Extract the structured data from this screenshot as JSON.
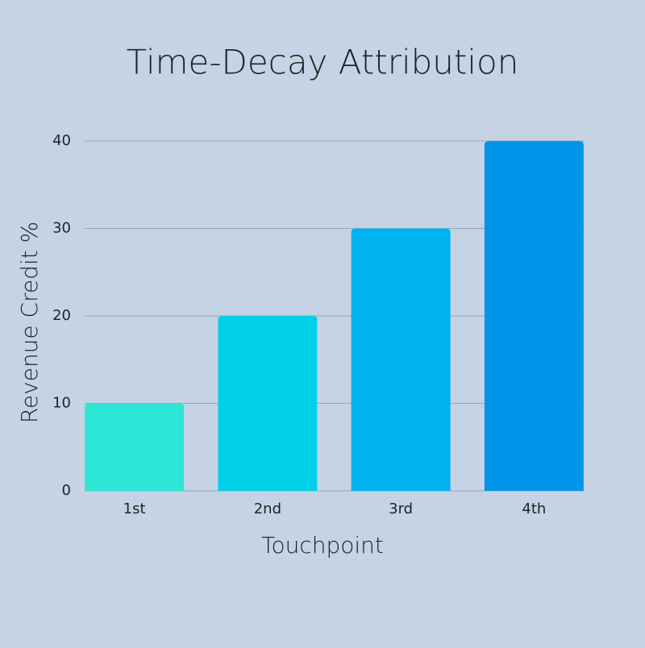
{
  "chart_data": {
    "type": "bar",
    "title": "Time-Decay Attribution",
    "x_label": "Touchpoint",
    "y_label": "Revenue Credit %",
    "categories": [
      "1st",
      "2nd",
      "3rd",
      "4th"
    ],
    "values": [
      10,
      20,
      30,
      40
    ],
    "colors": [
      "#2ee6d6",
      "#00d0e8",
      "#00b3f0",
      "#0095e8"
    ],
    "ylim": [
      0,
      40
    ],
    "yticks": [
      0,
      10,
      20,
      30,
      40
    ],
    "grid": true
  }
}
